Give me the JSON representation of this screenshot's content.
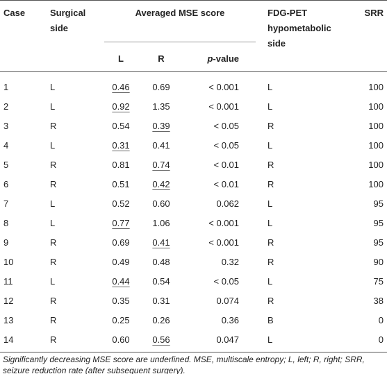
{
  "table": {
    "header": {
      "case": "Case",
      "surgical_side": "Surgical side",
      "averaged": "Averaged MSE score",
      "l": "L",
      "r": "R",
      "p_value": {
        "italic": "p",
        "rest": "-value"
      },
      "fdg": "FDG-PET hypometabolic side",
      "srr": "SRR"
    },
    "rows": [
      {
        "case": "1",
        "side": "L",
        "l": "0.46",
        "r": "0.69",
        "p": "< 0.001",
        "fdg": "L",
        "srr": "100",
        "underlined": "l"
      },
      {
        "case": "2",
        "side": "L",
        "l": "0.92",
        "r": "1.35",
        "p": "< 0.001",
        "fdg": "L",
        "srr": "100",
        "underlined": "l"
      },
      {
        "case": "3",
        "side": "R",
        "l": "0.54",
        "r": "0.39",
        "p": "< 0.05",
        "fdg": "R",
        "srr": "100",
        "underlined": "r"
      },
      {
        "case": "4",
        "side": "L",
        "l": "0.31",
        "r": "0.41",
        "p": "< 0.05",
        "fdg": "L",
        "srr": "100",
        "underlined": "l"
      },
      {
        "case": "5",
        "side": "R",
        "l": "0.81",
        "r": "0.74",
        "p": "< 0.01",
        "fdg": "R",
        "srr": "100",
        "underlined": "r"
      },
      {
        "case": "6",
        "side": "R",
        "l": "0.51",
        "r": "0.42",
        "p": "< 0.01",
        "fdg": "R",
        "srr": "100",
        "underlined": "r"
      },
      {
        "case": "7",
        "side": "L",
        "l": "0.52",
        "r": "0.60",
        "p": "0.062",
        "fdg": "L",
        "srr": "95"
      },
      {
        "case": "8",
        "side": "L",
        "l": "0.77",
        "r": "1.06",
        "p": "< 0.001",
        "fdg": "L",
        "srr": "95",
        "underlined": "l"
      },
      {
        "case": "9",
        "side": "R",
        "l": "0.69",
        "r": "0.41",
        "p": "< 0.001",
        "fdg": "R",
        "srr": "95",
        "underlined": "r"
      },
      {
        "case": "10",
        "side": "R",
        "l": "0.49",
        "r": "0.48",
        "p": "0.32",
        "fdg": "R",
        "srr": "90"
      },
      {
        "case": "11",
        "side": "L",
        "l": "0.44",
        "r": "0.54",
        "p": "< 0.05",
        "fdg": "L",
        "srr": "75",
        "underlined": "l"
      },
      {
        "case": "12",
        "side": "R",
        "l": "0.35",
        "r": "0.31",
        "p": "0.074",
        "fdg": "R",
        "srr": "38"
      },
      {
        "case": "13",
        "side": "R",
        "l": "0.25",
        "r": "0.26",
        "p": "0.36",
        "fdg": "B",
        "srr": "0"
      },
      {
        "case": "14",
        "side": "R",
        "l": "0.60",
        "r": "0.56",
        "p": "0.047",
        "fdg": "L",
        "srr": "0",
        "underlined": "r"
      }
    ],
    "footnote": "Significantly decreasing MSE score are underlined. MSE, multiscale entropy; L, left; R, right; SRR, seizure reduction rate (after subsequent surgery)."
  }
}
